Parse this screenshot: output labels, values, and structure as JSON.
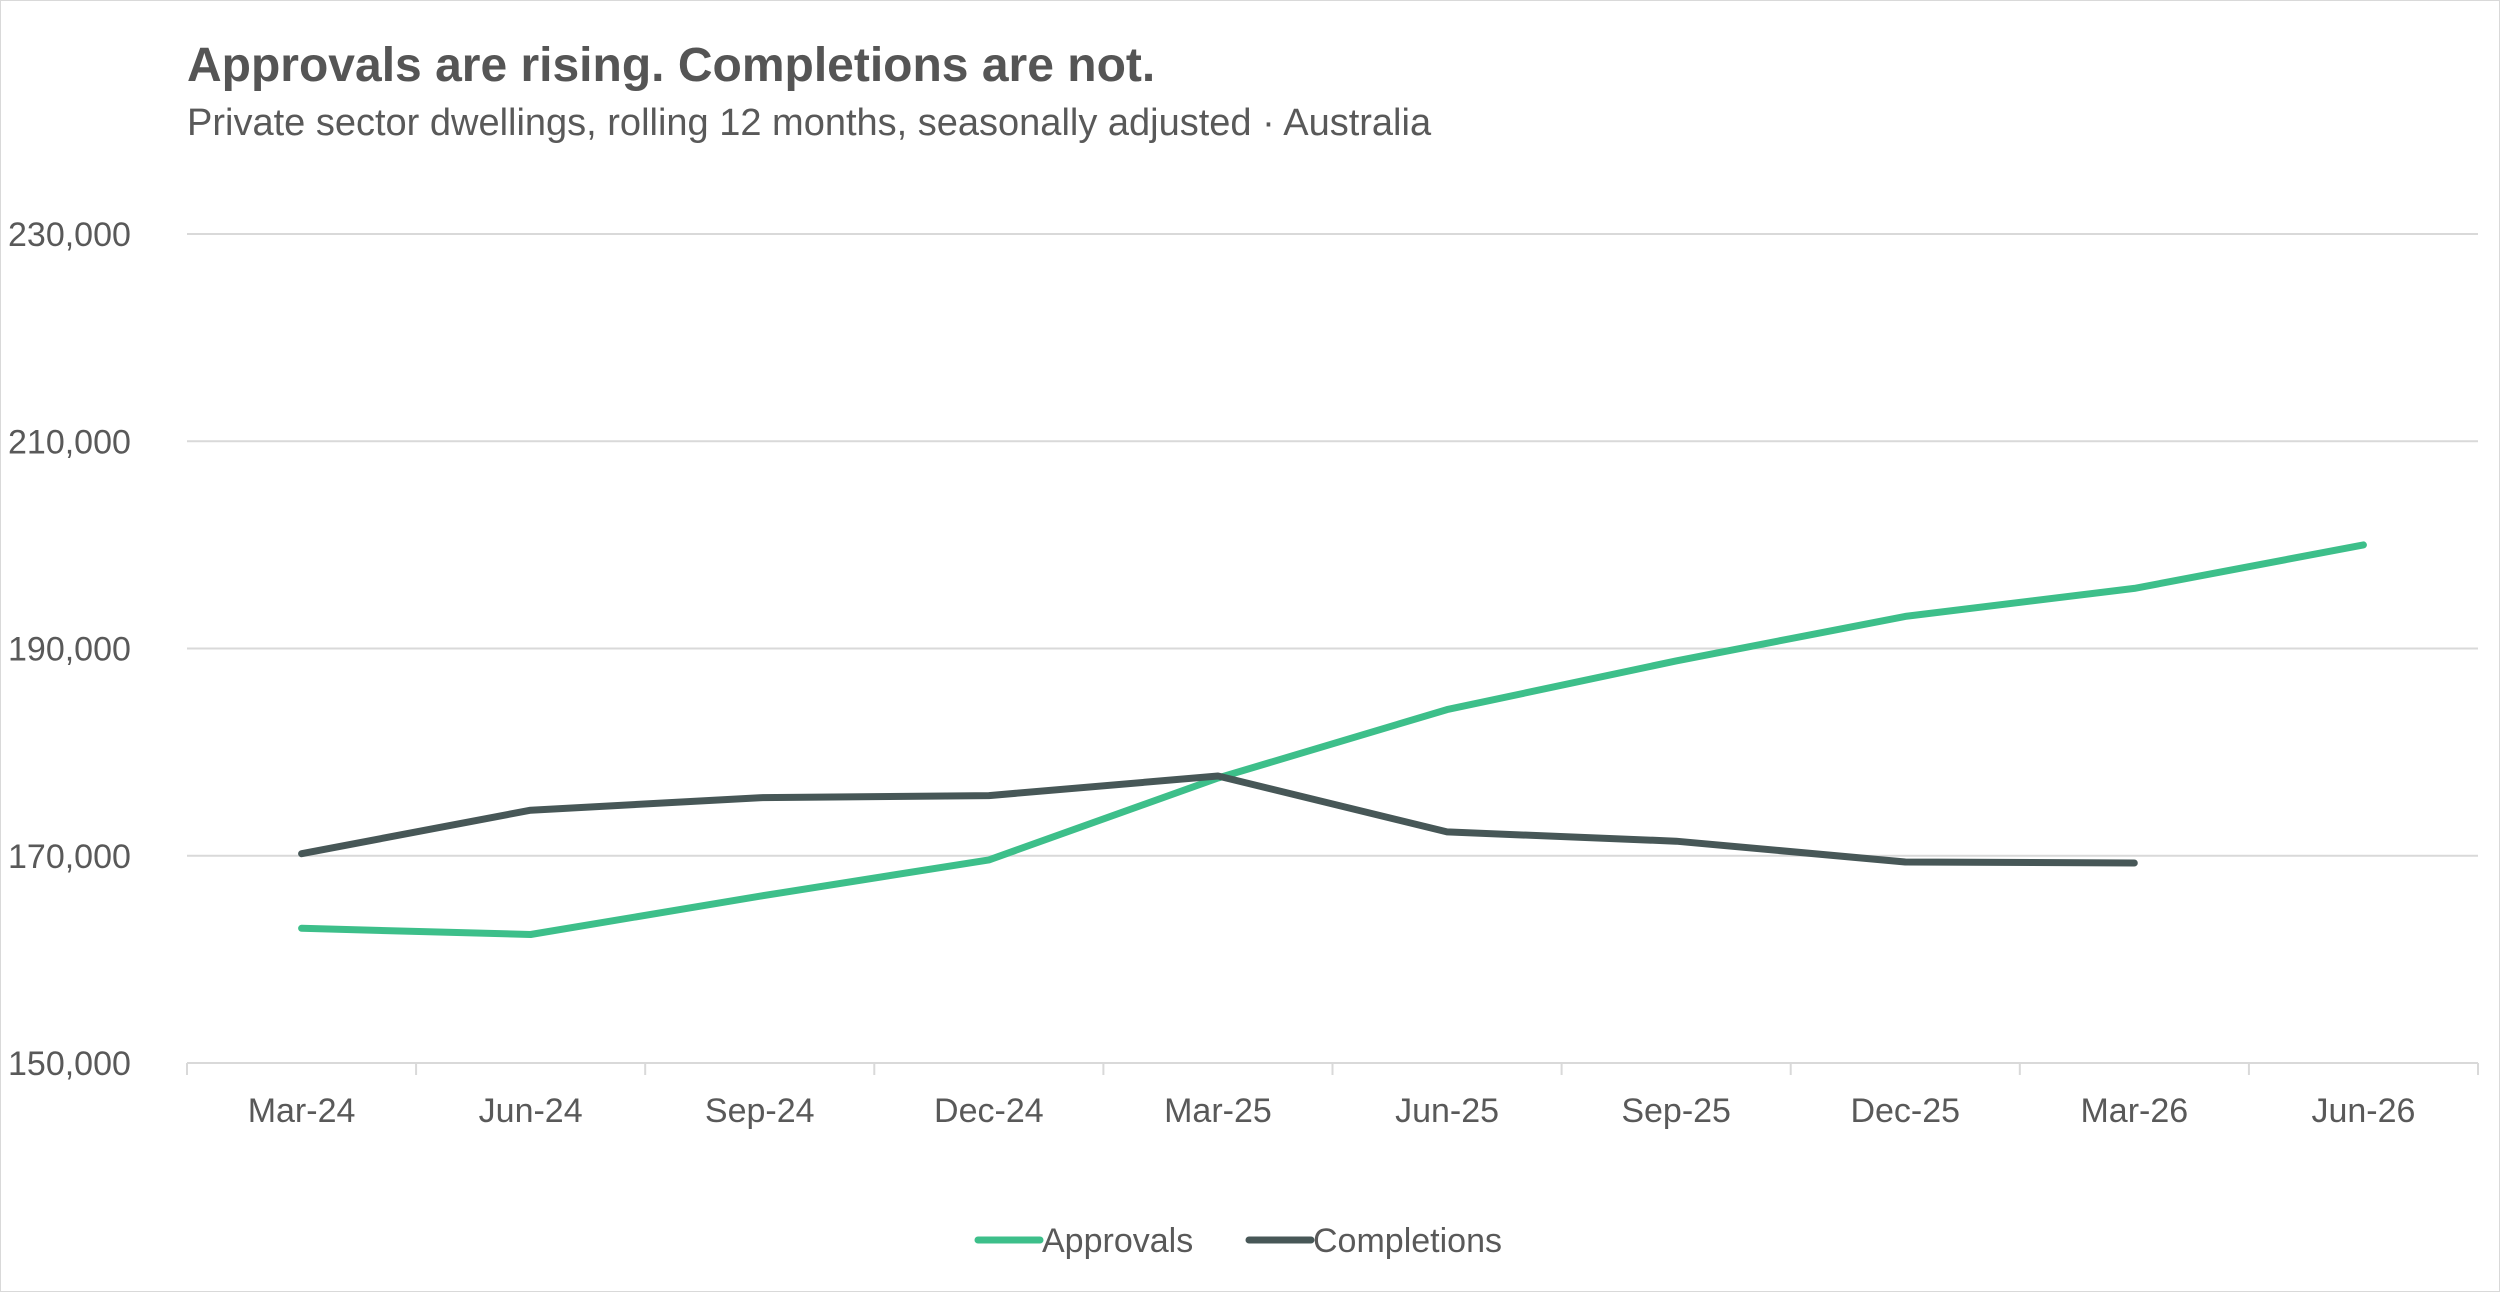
{
  "header": {
    "title": "Approvals are rising. Completions are not.",
    "subtitle": "Private sector dwellings, rolling 12 months, seasonally adjusted · Australia"
  },
  "colors": {
    "approvals": "#3dbf8a",
    "completions": "#475757",
    "grid": "#d9d9d9",
    "axis": "#d9d9d9",
    "text": "#595959"
  },
  "chart_data": {
    "type": "line",
    "title": "Approvals are rising. Completions are not.",
    "subtitle": "Private sector dwellings, rolling 12 months, seasonally adjusted · Australia",
    "xlabel": "",
    "ylabel": "",
    "categories": [
      "Mar-24",
      "Jun-24",
      "Sep-24",
      "Dec-24",
      "Mar-25",
      "Jun-25",
      "Sep-25",
      "Dec-25",
      "Mar-26",
      "Jun-26"
    ],
    "ylim": [
      150000,
      230000
    ],
    "yticks": [
      150000,
      170000,
      190000,
      210000,
      230000
    ],
    "ytick_labels": [
      "150,000",
      "170,000",
      "190,000",
      "210,000",
      "230,000"
    ],
    "grid": true,
    "legend_position": "bottom",
    "series": [
      {
        "name": "Approvals",
        "values": [
          163000,
          162400,
          166100,
          169600,
          177500,
          184100,
          188800,
          193100,
          195800,
          200000
        ]
      },
      {
        "name": "Completions",
        "values": [
          170200,
          174400,
          175600,
          175800,
          177700,
          172300,
          171400,
          169400,
          169300,
          null
        ]
      }
    ]
  }
}
